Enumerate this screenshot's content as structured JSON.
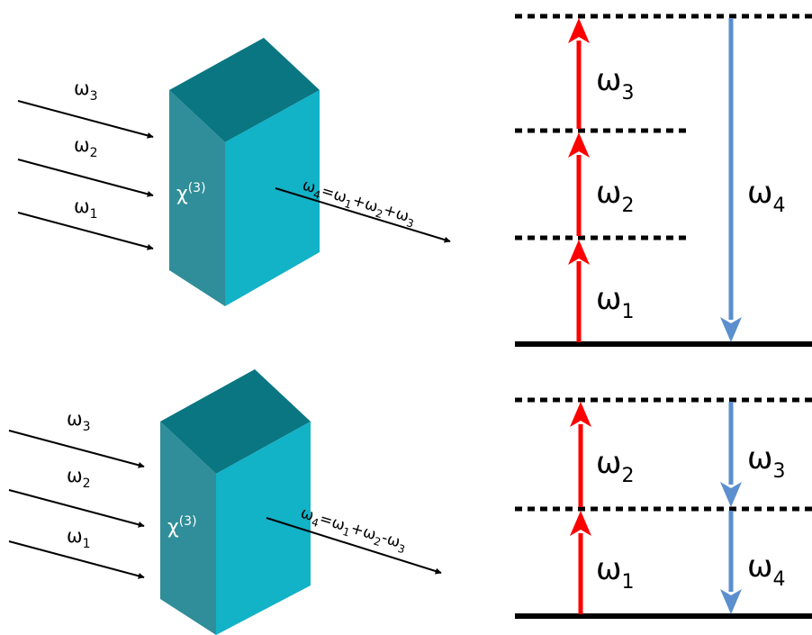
{
  "colors": {
    "crystal_top": "#0a7682",
    "crystal_side": "#2f8e99",
    "crystal_front": "#12b2c7",
    "up_arrow": "#ff0000",
    "down_arrow": "#5b8fce",
    "line": "#000000"
  },
  "top": {
    "input_labels": [
      {
        "base": "ω",
        "sub": "3"
      },
      {
        "base": "ω",
        "sub": "2"
      },
      {
        "base": "ω",
        "sub": "1"
      }
    ],
    "chi": {
      "base": "χ",
      "sup": "(3)"
    },
    "output_label": {
      "p1": "ω",
      "s1": "4",
      "p2": "=ω",
      "s2": "1",
      "p3": "+ω",
      "s3": "2",
      "p4": "+ω",
      "s4": "3"
    },
    "level_labels": {
      "up": [
        {
          "base": "ω",
          "sub": "3"
        },
        {
          "base": "ω",
          "sub": "2"
        },
        {
          "base": "ω",
          "sub": "1"
        }
      ],
      "down": [
        {
          "base": "ω",
          "sub": "4"
        }
      ]
    }
  },
  "bottom": {
    "input_labels": [
      {
        "base": "ω",
        "sub": "3"
      },
      {
        "base": "ω",
        "sub": "2"
      },
      {
        "base": "ω",
        "sub": "1"
      }
    ],
    "chi": {
      "base": "χ",
      "sup": "(3)"
    },
    "output_label": {
      "p1": "ω",
      "s1": "4",
      "p2": "=ω",
      "s2": "1",
      "p3": "+ω",
      "s3": "2",
      "p4": "-ω",
      "s4": "3"
    },
    "level_labels": {
      "up": [
        {
          "base": "ω",
          "sub": "2"
        },
        {
          "base": "ω",
          "sub": "1"
        }
      ],
      "down": [
        {
          "base": "ω",
          "sub": "3"
        },
        {
          "base": "ω",
          "sub": "4"
        }
      ]
    }
  }
}
